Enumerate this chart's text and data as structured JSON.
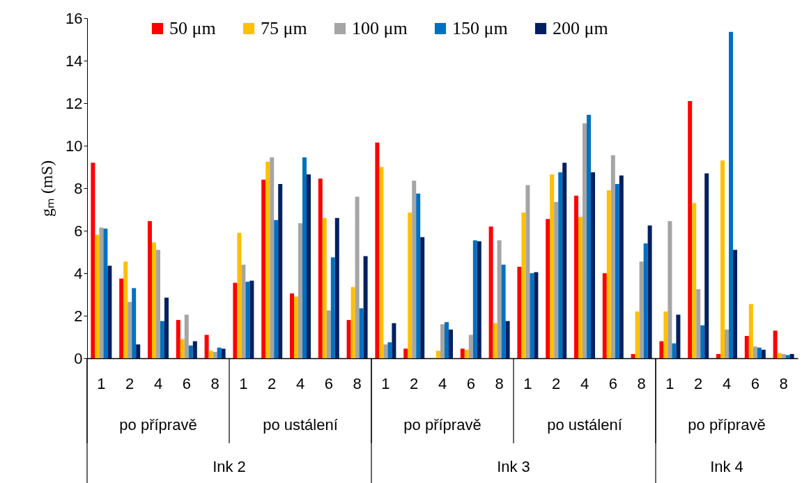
{
  "chart_data": {
    "type": "bar",
    "ylabel": "gₘ (mS)",
    "categories": [
      "1",
      "2",
      "4",
      "6",
      "8",
      "1",
      "2",
      "4",
      "6",
      "8",
      "1",
      "2",
      "4",
      "6",
      "8",
      "1",
      "2",
      "4",
      "6",
      "8",
      "1",
      "2",
      "4",
      "6",
      "8"
    ],
    "series": [
      {
        "name": "50 μm",
        "color": "#ff0000",
        "values": [
          9.2,
          3.75,
          6.45,
          1.8,
          1.1,
          3.55,
          8.4,
          3.05,
          8.45,
          1.8,
          10.15,
          0.45,
          null,
          0.45,
          6.2,
          4.3,
          6.55,
          7.65,
          4.0,
          0.2,
          0.8,
          12.1,
          0.2,
          1.05,
          1.3
        ]
      },
      {
        "name": "75 μm",
        "color": "#ffc000",
        "values": [
          5.8,
          4.55,
          5.45,
          0.9,
          0.35,
          5.9,
          9.25,
          2.9,
          6.6,
          3.35,
          9.0,
          6.85,
          0.35,
          0.4,
          1.65,
          6.85,
          8.65,
          6.65,
          7.9,
          2.2,
          2.2,
          7.3,
          9.3,
          2.55,
          0.25
        ]
      },
      {
        "name": "100 μm",
        "color": "#a5a5a5",
        "values": [
          6.15,
          2.65,
          5.1,
          2.05,
          0.3,
          4.4,
          9.45,
          6.35,
          2.25,
          7.6,
          0.65,
          8.35,
          1.6,
          1.1,
          5.55,
          8.15,
          7.35,
          11.05,
          9.55,
          4.55,
          6.45,
          3.25,
          1.35,
          0.55,
          0.2
        ]
      },
      {
        "name": "150 μm",
        "color": "#0070c0",
        "values": [
          6.1,
          3.3,
          1.75,
          0.6,
          0.5,
          3.6,
          6.5,
          9.45,
          4.75,
          2.35,
          0.75,
          7.75,
          1.7,
          5.55,
          4.4,
          4.0,
          8.75,
          11.45,
          8.2,
          5.4,
          0.7,
          1.55,
          15.35,
          0.5,
          0.15
        ]
      },
      {
        "name": "200 μm",
        "color": "#002060",
        "values": [
          4.35,
          0.65,
          2.85,
          0.8,
          0.45,
          3.65,
          8.2,
          8.65,
          6.6,
          4.8,
          1.65,
          5.7,
          1.35,
          5.5,
          1.75,
          4.05,
          9.2,
          8.75,
          8.6,
          6.25,
          2.05,
          8.7,
          5.1,
          0.4,
          0.2
        ]
      }
    ],
    "ylim": [
      0,
      16
    ],
    "yticks": [
      0,
      2,
      4,
      6,
      8,
      10,
      12,
      14,
      16
    ],
    "grid": false,
    "legend": "top",
    "annotations": [
      "po přípravě",
      "po ustálení",
      "po přípravě",
      "po ustálení",
      "po přípravě",
      "Ink 2",
      "Ink 3",
      "Ink 4"
    ]
  }
}
